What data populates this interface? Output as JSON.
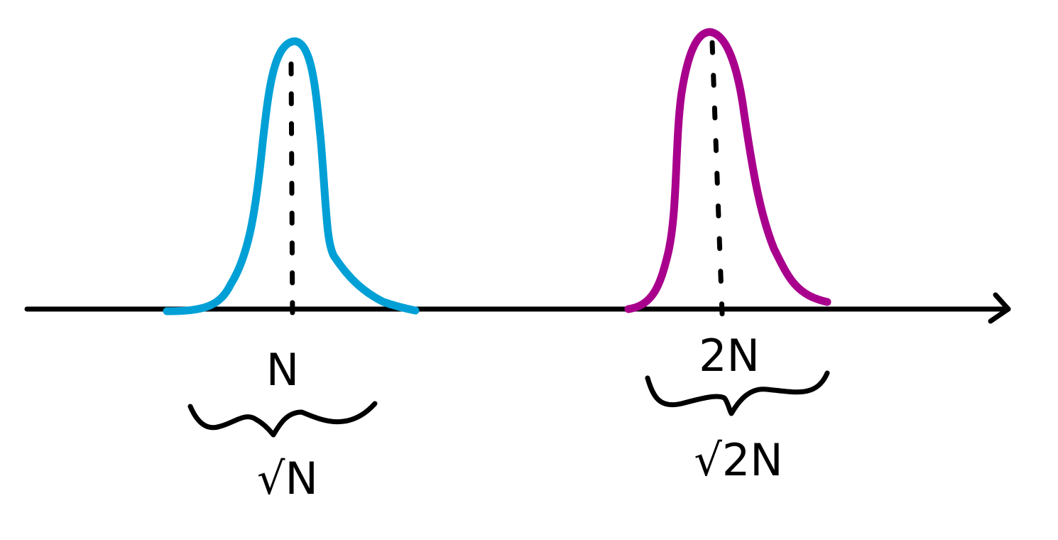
{
  "peaks": [
    {
      "label": "N",
      "width_label": "√N"
    },
    {
      "label": "2N",
      "width_label": "√2N"
    }
  ]
}
